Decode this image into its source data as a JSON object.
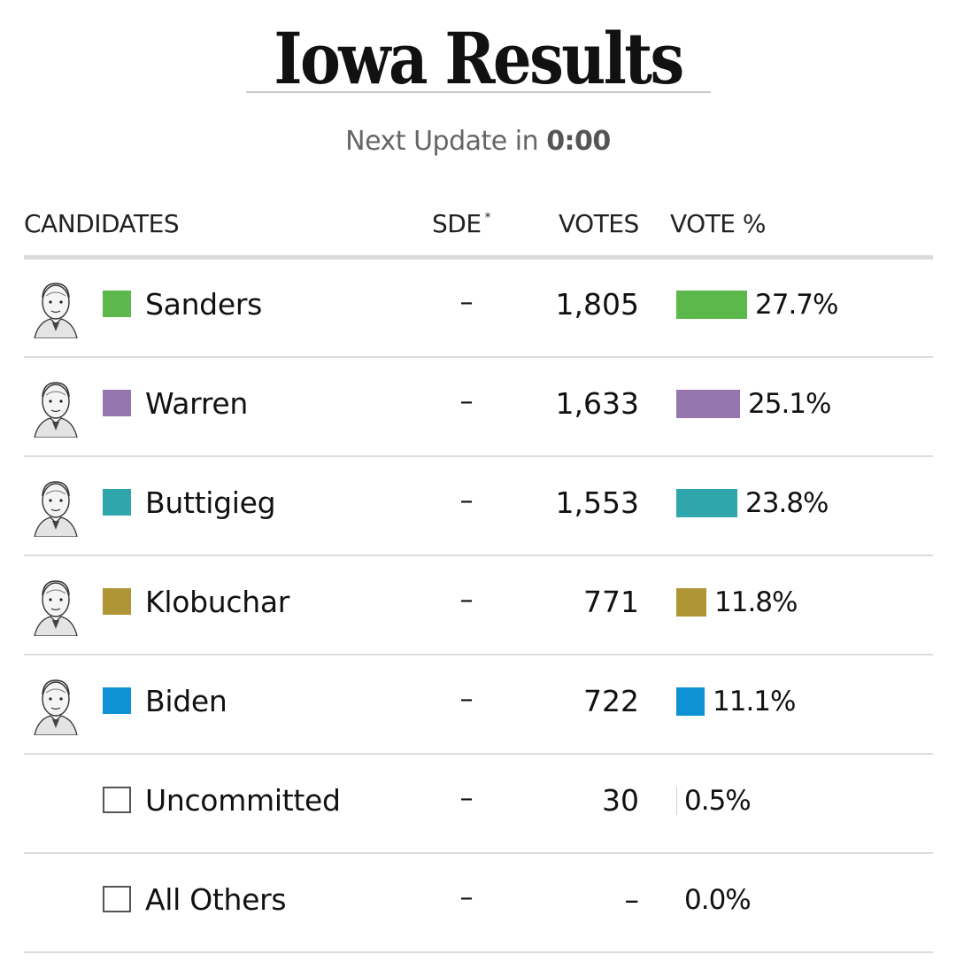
{
  "page": {
    "title": "Iowa Results",
    "update_label": "Next Update in",
    "update_time": "0:00"
  },
  "chart_data": {
    "type": "table",
    "columns": [
      "CANDIDATES",
      "SDE",
      "VOTES",
      "VOTE %"
    ],
    "sde_footnote": "*",
    "rows": [
      {
        "name": "Sanders",
        "sde": "–",
        "votes": "1,805",
        "votes_value": 1805,
        "pct_label": "27.7%",
        "pct": 27.7,
        "color": "#5cb84b",
        "portrait": true
      },
      {
        "name": "Warren",
        "sde": "–",
        "votes": "1,633",
        "votes_value": 1633,
        "pct_label": "25.1%",
        "pct": 25.1,
        "color": "#9776b0",
        "portrait": true
      },
      {
        "name": "Buttigieg",
        "sde": "–",
        "votes": "1,553",
        "votes_value": 1553,
        "pct_label": "23.8%",
        "pct": 23.8,
        "color": "#2fa6ac",
        "portrait": true
      },
      {
        "name": "Klobuchar",
        "sde": "–",
        "votes": "771",
        "votes_value": 771,
        "pct_label": "11.8%",
        "pct": 11.8,
        "color": "#b09536",
        "portrait": true
      },
      {
        "name": "Biden",
        "sde": "–",
        "votes": "722",
        "votes_value": 722,
        "pct_label": "11.1%",
        "pct": 11.1,
        "color": "#0f91d6",
        "portrait": true
      },
      {
        "name": "Uncommitted",
        "sde": "–",
        "votes": "30",
        "votes_value": 30,
        "pct_label": "0.5%",
        "pct": 0.5,
        "color": "#555555",
        "portrait": false
      },
      {
        "name": "All Others",
        "sde": "–",
        "votes": "–",
        "votes_value": 0,
        "pct_label": "0.0%",
        "pct": 0.0,
        "color": "#555555",
        "portrait": false
      }
    ]
  }
}
